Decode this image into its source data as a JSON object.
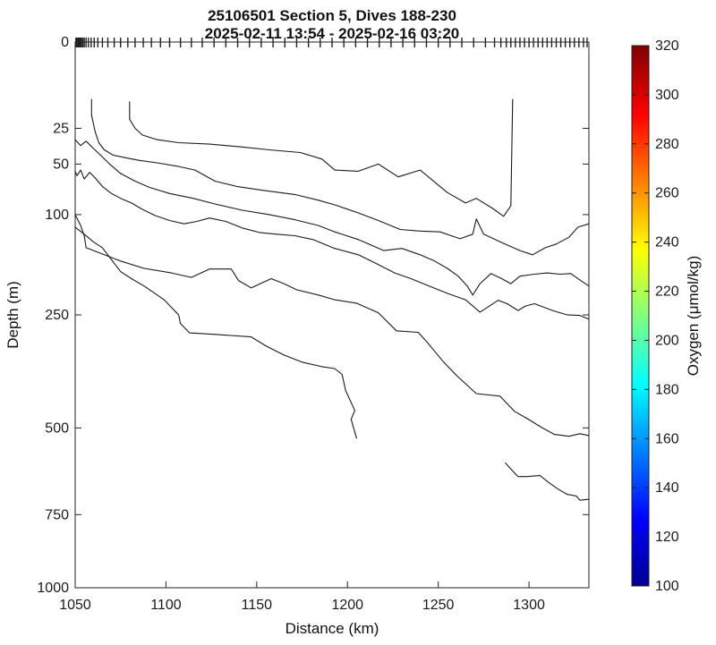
{
  "chart_data": {
    "type": "line",
    "subtype": "contour-section",
    "title": "25106501 Section 5, Dives 188-230",
    "subtitle": "2025-02-11 13:54 - 2025-02-16 03:20",
    "xlabel": "Distance (km)",
    "ylabel": "Depth (m)",
    "x_range": [
      1050,
      1333
    ],
    "x_ticks": [
      1050,
      1100,
      1150,
      1200,
      1250,
      1300
    ],
    "y_scale": "sqrt",
    "depth_range": [
      0,
      1000
    ],
    "depth_ticks": [
      0,
      25,
      50,
      100,
      250,
      500,
      750,
      1000
    ],
    "grid": false,
    "contour_color": "#1a1a1a",
    "dive_marks_km": [
      1050.4,
      1050.9,
      1051.4,
      1051.9,
      1052.4,
      1052.9,
      1053.5,
      1054.2,
      1055,
      1056,
      1057.3,
      1058.8,
      1060.5,
      1062.5,
      1065,
      1068,
      1071.5,
      1075,
      1079,
      1083,
      1087.5,
      1092,
      1097,
      1102,
      1108,
      1114,
      1120,
      1126.5,
      1133,
      1139.5,
      1146,
      1152.5,
      1159,
      1165.5,
      1172,
      1178.5,
      1185,
      1191.5,
      1198,
      1204.5,
      1211,
      1217.5,
      1224,
      1230.5,
      1237,
      1243.5,
      1250,
      1256.5,
      1263,
      1269.5,
      1276,
      1281,
      1284.5,
      1287.5,
      1290,
      1292.5,
      1295,
      1297.5,
      1300,
      1302.5,
      1305,
      1307.5,
      1310,
      1312.5,
      1315,
      1317.5,
      1320,
      1322.5,
      1325,
      1327.5,
      1330,
      1332
    ],
    "colorbar": {
      "label": "Oxygen (μmol/kg)",
      "range": [
        100,
        320
      ],
      "ticks": [
        100,
        120,
        140,
        160,
        180,
        200,
        220,
        240,
        260,
        280,
        300,
        320
      ],
      "colormap": "jet",
      "gradient_stops": [
        {
          "value": 100,
          "color": "#00008F"
        },
        {
          "value": 127,
          "color": "#0000FF"
        },
        {
          "value": 182,
          "color": "#00FFFF"
        },
        {
          "value": 237,
          "color": "#FFFF00"
        },
        {
          "value": 292,
          "color": "#FF0000"
        },
        {
          "value": 320,
          "color": "#800000"
        }
      ]
    },
    "series": [
      {
        "name": "contour-1",
        "points": [
          [
            1080,
            12
          ],
          [
            1080,
            20
          ],
          [
            1083,
            25
          ],
          [
            1087,
            29
          ],
          [
            1095,
            32
          ],
          [
            1107,
            34
          ],
          [
            1124,
            35
          ],
          [
            1142,
            37
          ],
          [
            1157,
            39
          ],
          [
            1174,
            41
          ],
          [
            1186,
            46
          ],
          [
            1193,
            55
          ],
          [
            1206,
            56
          ],
          [
            1217,
            50
          ],
          [
            1228,
            61
          ],
          [
            1240,
            55
          ],
          [
            1255,
            76
          ],
          [
            1265,
            87
          ],
          [
            1271,
            82
          ],
          [
            1280,
            93
          ],
          [
            1286,
            102
          ],
          [
            1290,
            90
          ],
          [
            1291,
            11
          ]
        ]
      },
      {
        "name": "contour-2",
        "points": [
          [
            1059,
            11
          ],
          [
            1059,
            18
          ],
          [
            1061,
            27
          ],
          [
            1063,
            34
          ],
          [
            1066,
            39
          ],
          [
            1071,
            43
          ],
          [
            1078,
            45
          ],
          [
            1085,
            47
          ],
          [
            1095,
            49
          ],
          [
            1107,
            52
          ],
          [
            1116,
            55
          ],
          [
            1127,
            65
          ],
          [
            1139,
            70
          ],
          [
            1154,
            74
          ],
          [
            1171,
            78
          ],
          [
            1184,
            84
          ],
          [
            1193,
            89
          ],
          [
            1206,
            98
          ],
          [
            1217,
            107
          ],
          [
            1229,
            118
          ],
          [
            1240,
            120
          ],
          [
            1251,
            121
          ],
          [
            1262,
            130
          ],
          [
            1269,
            124
          ],
          [
            1271,
            105
          ],
          [
            1275,
            124
          ],
          [
            1285,
            135
          ],
          [
            1295,
            146
          ],
          [
            1302,
            152
          ],
          [
            1309,
            142
          ],
          [
            1315,
            137
          ],
          [
            1322,
            128
          ],
          [
            1327,
            115
          ],
          [
            1333,
            111
          ]
        ]
      },
      {
        "name": "contour-3",
        "points": [
          [
            1050,
            32
          ],
          [
            1053,
            36
          ],
          [
            1056,
            33
          ],
          [
            1060,
            38
          ],
          [
            1064,
            43
          ],
          [
            1069,
            50
          ],
          [
            1075,
            58
          ],
          [
            1083,
            65
          ],
          [
            1091,
            71
          ],
          [
            1102,
            77
          ],
          [
            1115,
            82
          ],
          [
            1127,
            88
          ],
          [
            1142,
            95
          ],
          [
            1157,
            100
          ],
          [
            1171,
            106
          ],
          [
            1184,
            113
          ],
          [
            1193,
            121
          ],
          [
            1206,
            131
          ],
          [
            1220,
            146
          ],
          [
            1230,
            143
          ],
          [
            1240,
            152
          ],
          [
            1248,
            161
          ],
          [
            1255,
            172
          ],
          [
            1261,
            184
          ],
          [
            1266,
            200
          ],
          [
            1269,
            215
          ],
          [
            1273,
            196
          ],
          [
            1279,
            180
          ],
          [
            1285,
            188
          ],
          [
            1290,
            196
          ],
          [
            1295,
            184
          ],
          [
            1303,
            181
          ],
          [
            1310,
            179
          ],
          [
            1317,
            181
          ],
          [
            1323,
            180
          ],
          [
            1328,
            190
          ],
          [
            1333,
            200
          ]
        ]
      },
      {
        "name": "contour-4",
        "points": [
          [
            1050,
            56
          ],
          [
            1051,
            60
          ],
          [
            1053,
            55
          ],
          [
            1055,
            63
          ],
          [
            1058,
            57
          ],
          [
            1061,
            62
          ],
          [
            1065,
            70
          ],
          [
            1070,
            77
          ],
          [
            1075,
            82
          ],
          [
            1081,
            87
          ],
          [
            1087,
            94
          ],
          [
            1094,
            101
          ],
          [
            1102,
            107
          ],
          [
            1110,
            111
          ],
          [
            1117,
            108
          ],
          [
            1124,
            104
          ],
          [
            1133,
            108
          ],
          [
            1142,
            116
          ],
          [
            1152,
            122
          ],
          [
            1161,
            124
          ],
          [
            1171,
            126
          ],
          [
            1181,
            131
          ],
          [
            1193,
            143
          ],
          [
            1206,
            152
          ],
          [
            1216,
            165
          ],
          [
            1226,
            179
          ],
          [
            1235,
            188
          ],
          [
            1245,
            200
          ],
          [
            1255,
            212
          ],
          [
            1265,
            223
          ],
          [
            1273,
            245
          ],
          [
            1283,
            224
          ],
          [
            1288,
            230
          ],
          [
            1294,
            242
          ],
          [
            1298,
            234
          ],
          [
            1303,
            230
          ],
          [
            1313,
            242
          ],
          [
            1321,
            250
          ],
          [
            1328,
            251
          ],
          [
            1333,
            258
          ]
        ]
      },
      {
        "name": "contour-5",
        "points": [
          [
            1050,
            100
          ],
          [
            1053,
            113
          ],
          [
            1055,
            126
          ],
          [
            1056,
            142
          ],
          [
            1075,
            161
          ],
          [
            1088,
            172
          ],
          [
            1103,
            179
          ],
          [
            1114,
            186
          ],
          [
            1124,
            173
          ],
          [
            1136,
            173
          ],
          [
            1140,
            191
          ],
          [
            1147,
            203
          ],
          [
            1158,
            188
          ],
          [
            1165,
            196
          ],
          [
            1172,
            206
          ],
          [
            1184,
            215
          ],
          [
            1193,
            223
          ],
          [
            1205,
            229
          ],
          [
            1217,
            246
          ],
          [
            1227,
            280
          ],
          [
            1239,
            283
          ],
          [
            1244,
            303
          ],
          [
            1253,
            344
          ],
          [
            1260,
            373
          ],
          [
            1271,
            415
          ],
          [
            1284,
            421
          ],
          [
            1292,
            458
          ],
          [
            1299,
            476
          ],
          [
            1307,
            499
          ],
          [
            1314,
            517
          ],
          [
            1322,
            522
          ],
          [
            1328,
            515
          ],
          [
            1333,
            520
          ]
        ]
      },
      {
        "name": "contour-6",
        "points": [
          [
            1050,
            115
          ],
          [
            1055,
            124
          ],
          [
            1060,
            134
          ],
          [
            1065,
            142
          ],
          [
            1075,
            177
          ],
          [
            1081,
            188
          ],
          [
            1088,
            200
          ],
          [
            1099,
            223
          ],
          [
            1107,
            250
          ],
          [
            1108,
            266
          ],
          [
            1113,
            284
          ],
          [
            1127,
            287
          ],
          [
            1147,
            292
          ],
          [
            1155,
            310
          ],
          [
            1165,
            329
          ],
          [
            1175,
            344
          ],
          [
            1186,
            354
          ],
          [
            1193,
            358
          ],
          [
            1197,
            371
          ],
          [
            1199,
            408
          ],
          [
            1202,
            436
          ],
          [
            1204,
            456
          ],
          [
            1202,
            478
          ],
          [
            1205,
            527
          ]
        ]
      },
      {
        "name": "contour-7",
        "points": [
          [
            1287,
            595
          ],
          [
            1291,
            618
          ],
          [
            1294,
            634
          ],
          [
            1299,
            634
          ],
          [
            1306,
            631
          ],
          [
            1311,
            652
          ],
          [
            1316,
            671
          ],
          [
            1321,
            687
          ],
          [
            1326,
            692
          ],
          [
            1328,
            705
          ],
          [
            1333,
            702
          ]
        ]
      }
    ]
  }
}
